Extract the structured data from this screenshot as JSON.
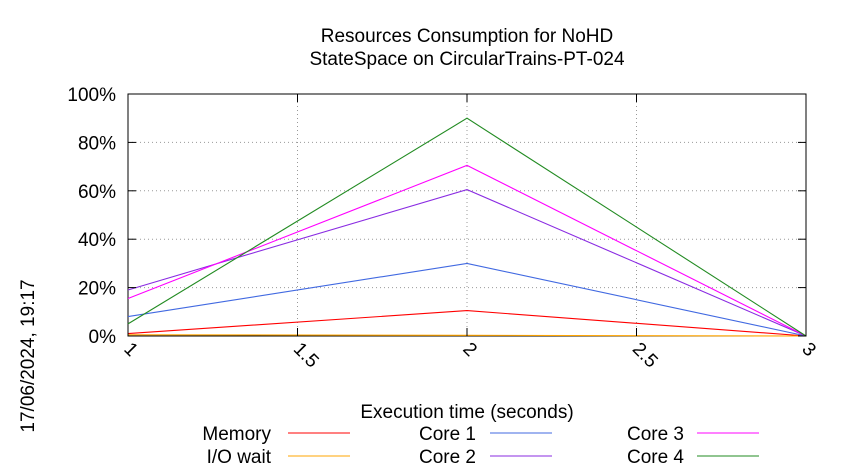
{
  "timestamp": "17/06/2024, 19:17",
  "chart_data": {
    "type": "line",
    "title_lines": [
      "Resources Consumption for NoHD",
      "StateSpace on CircularTrains-PT-024"
    ],
    "xlabel": "Execution time (seconds)",
    "ylabel": "",
    "xlim": [
      1,
      3
    ],
    "ylim": [
      0,
      100
    ],
    "x_ticks": [
      1,
      1.5,
      2,
      2.5,
      3
    ],
    "x_tick_labels": [
      "1",
      "1.5",
      "2",
      "2.5",
      "3"
    ],
    "y_ticks": [
      0,
      20,
      40,
      60,
      80,
      100
    ],
    "y_tick_labels": [
      "0%",
      "20%",
      "40%",
      "60%",
      "80%",
      "100%"
    ],
    "grid": true,
    "legend_position": "bottom",
    "series": [
      {
        "name": "Memory",
        "color": "#ff0000",
        "x": [
          1,
          2,
          3
        ],
        "y": [
          1,
          10.5,
          0
        ]
      },
      {
        "name": "I/O wait",
        "color": "#ffa500",
        "x": [
          1,
          2,
          3
        ],
        "y": [
          0.5,
          0.3,
          0
        ]
      },
      {
        "name": "Core 1",
        "color": "#4169e1",
        "x": [
          1,
          2,
          3
        ],
        "y": [
          8,
          30,
          0
        ]
      },
      {
        "name": "Core 2",
        "color": "#8a2be2",
        "x": [
          1,
          2,
          3
        ],
        "y": [
          19,
          60.5,
          0
        ]
      },
      {
        "name": "Core 3",
        "color": "#ff00ff",
        "x": [
          1,
          2,
          3
        ],
        "y": [
          15.5,
          70.5,
          0
        ]
      },
      {
        "name": "Core 4",
        "color": "#228b22",
        "x": [
          1,
          2,
          3
        ],
        "y": [
          5,
          90,
          0
        ]
      }
    ]
  }
}
